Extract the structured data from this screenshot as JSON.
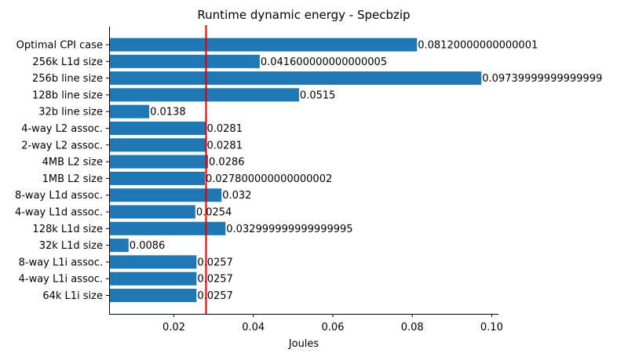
{
  "chart_data": {
    "type": "bar",
    "orientation": "horizontal",
    "title": "Runtime dynamic energy - Specbzip",
    "xlabel": "Joules",
    "ylabel": "",
    "xlim": [
      0.0037,
      0.1017
    ],
    "xticks": [
      0.02,
      0.04,
      0.06,
      0.08,
      0.1
    ],
    "xtick_labels": [
      "0.02",
      "0.04",
      "0.06",
      "0.08",
      "0.10"
    ],
    "grid": false,
    "bar_color": "#1f77b4",
    "reference_line": {
      "value": 0.0281,
      "color": "#e00000"
    },
    "categories": [
      "Optimal CPI case",
      "256k L1d size",
      "256b line size",
      "128b line size",
      "32b line size",
      "4-way L2 assoc.",
      "2-way L2 assoc.",
      "4MB L2 size",
      "1MB L2 size",
      "8-way L1d assoc.",
      "4-way L1d assoc.",
      "128k L1d size",
      "32k L1d size",
      "8-way L1i assoc.",
      "4-way L1i assoc.",
      "64k L1i size"
    ],
    "values": [
      0.0812,
      0.0416,
      0.0974,
      0.0515,
      0.0138,
      0.0281,
      0.0281,
      0.0286,
      0.0278,
      0.032,
      0.0254,
      0.033,
      0.0086,
      0.0257,
      0.0257,
      0.0257
    ],
    "value_labels": [
      "0.08120000000000001",
      "0.041600000000000005",
      "0.09739999999999999",
      "0.0515",
      "0.0138",
      "0.0281",
      "0.0281",
      "0.0286",
      "0.027800000000000002",
      "0.032",
      "0.0254",
      "0.032999999999999995",
      "0.0086",
      "0.0257",
      "0.0257",
      "0.0257"
    ]
  }
}
